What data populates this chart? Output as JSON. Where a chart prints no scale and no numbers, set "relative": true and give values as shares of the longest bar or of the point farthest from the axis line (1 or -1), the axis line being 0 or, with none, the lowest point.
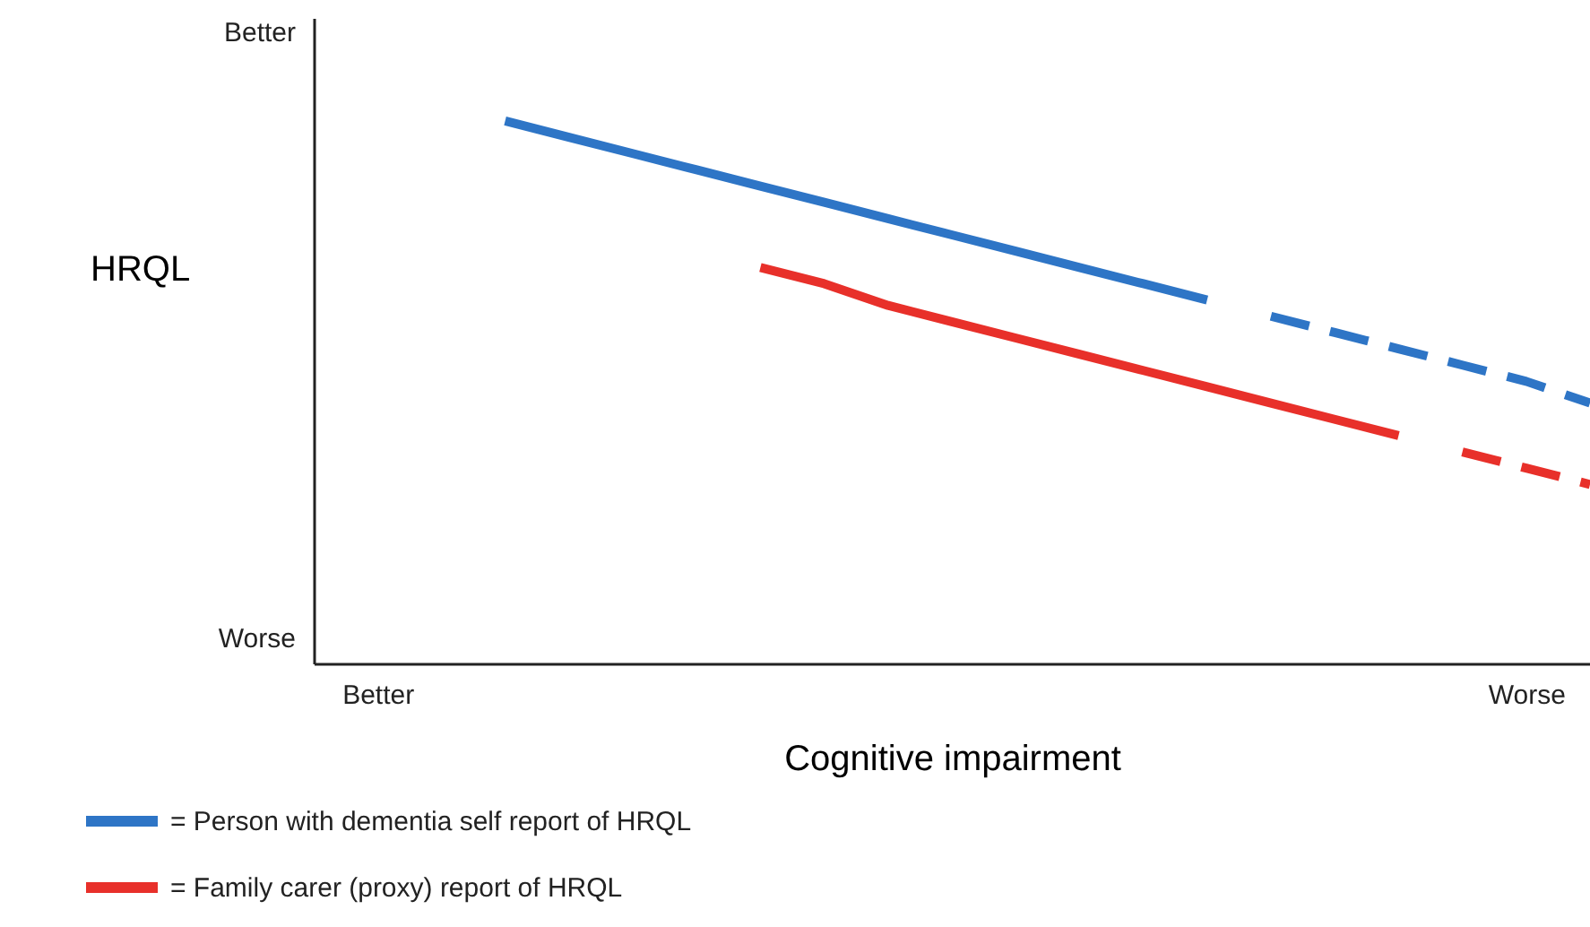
{
  "chart_data": {
    "type": "line",
    "relative": true,
    "xlabel": "Cognitive impairment",
    "ylabel": "HRQL",
    "categories": [
      null,
      "Better",
      null,
      null,
      null,
      null,
      null,
      null,
      null,
      null,
      null,
      null,
      null,
      null,
      null,
      null,
      null,
      null,
      null,
      "Worse",
      null
    ],
    "annotations": [
      "Better",
      "Worse"
    ],
    "grid": false,
    "legend": "bottom",
    "marker": "none",
    "series": [
      {
        "name": "=  Person with dementia self report of HRQL",
        "color": "#2e75c6",
        "line_style": "solid",
        "values": [
          null,
          null,
          null,
          1.0,
          0.97,
          0.94,
          0.91,
          0.88,
          0.85,
          0.82,
          0.79,
          0.76,
          0.73,
          0.7,
          0.67,
          null,
          null,
          null,
          null,
          null,
          null
        ]
      },
      {
        "color": "#2e75c6",
        "line_style": "dashed",
        "values": [
          null,
          null,
          null,
          null,
          null,
          null,
          null,
          null,
          null,
          null,
          null,
          null,
          null,
          null,
          null,
          0.64,
          0.61,
          0.58,
          0.55,
          0.52,
          0.48
        ]
      },
      {
        "name": "=  Family carer (proxy) report of HRQL",
        "color": "#e8302a",
        "line_style": "solid",
        "values": [
          null,
          null,
          null,
          null,
          null,
          null,
          null,
          0.73,
          0.7,
          0.66,
          0.63,
          0.6,
          0.57,
          0.54,
          0.51,
          0.48,
          0.45,
          0.42,
          null,
          null,
          null
        ]
      },
      {
        "color": "#e8302a",
        "line_style": "dashed",
        "values": [
          null,
          null,
          null,
          null,
          null,
          null,
          null,
          null,
          null,
          null,
          null,
          null,
          null,
          null,
          null,
          null,
          null,
          null,
          0.39,
          0.36,
          0.33
        ]
      }
    ]
  }
}
